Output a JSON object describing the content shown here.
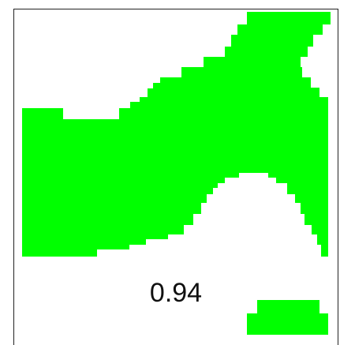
{
  "score": {
    "value": "0.94"
  },
  "mask": {
    "fill_color": "#00ff00"
  }
}
